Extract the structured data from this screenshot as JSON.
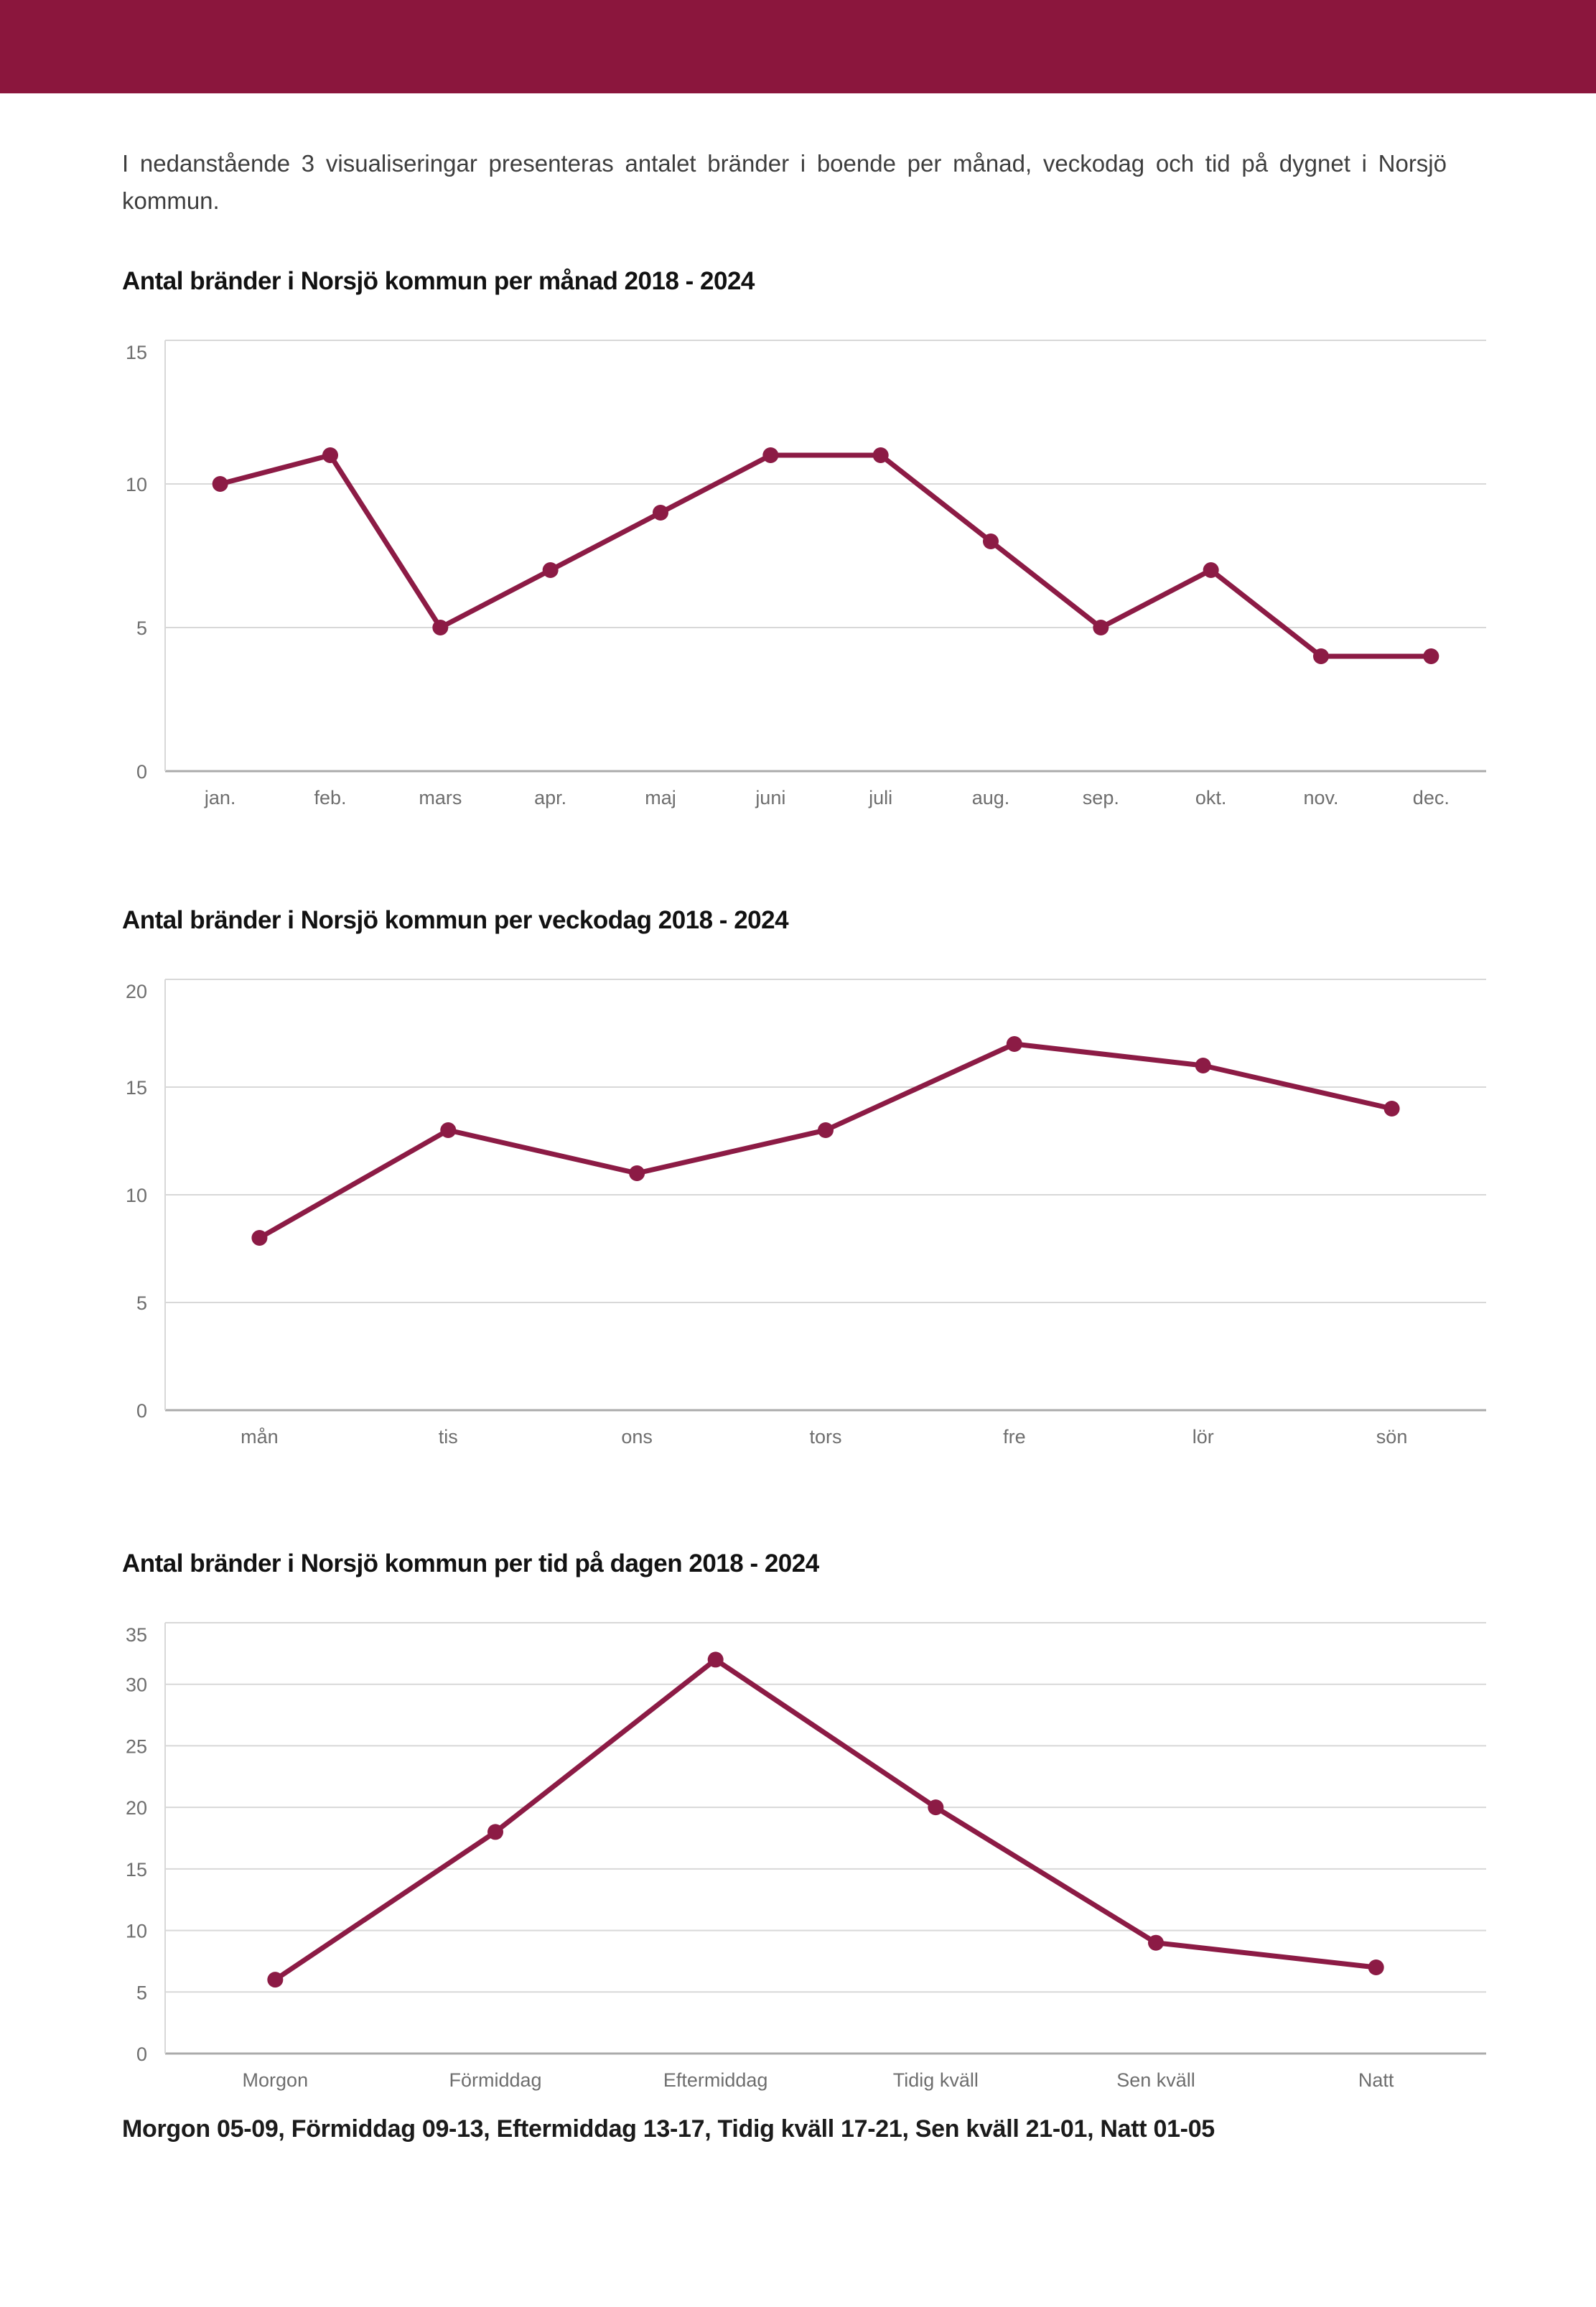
{
  "page": {
    "intro": "I nedanstående 3 visualiseringar presenteras antalet bränder i boende per månad, veckodag och tid på dygnet i Norsjö kommun.",
    "footnote": "Morgon 05-09, Förmiddag 09-13, Eftermiddag 13-17, Tidig kväll 17-21, Sen kväll 21-01, Natt 01-05"
  },
  "colors": {
    "header_bar": "#8B163D",
    "line": "#8C1B45",
    "marker": "#8C1B45",
    "gridline": "#D8D8D8",
    "zero_axis": "#ABABAB",
    "tick_text": "#6E6E6E",
    "body_text": "#3E3E3E",
    "title_text": "#121212"
  },
  "chart_data": [
    {
      "type": "line",
      "title": "Antal bränder i Norsjö kommun per månad 2018 - 2024",
      "categories": [
        "jan.",
        "feb.",
        "mars",
        "apr.",
        "maj",
        "juni",
        "juli",
        "aug.",
        "sep.",
        "okt.",
        "nov.",
        "dec."
      ],
      "values": [
        10,
        11,
        5,
        7,
        9,
        11,
        11,
        8,
        5,
        7,
        4,
        4
      ],
      "xlabel": "",
      "ylabel": "",
      "ylim": [
        0,
        15
      ],
      "yticks": [
        0,
        5,
        10,
        15
      ],
      "grid": true,
      "legend": "none",
      "marker": "circle"
    },
    {
      "type": "line",
      "title": "Antal bränder i Norsjö kommun per veckodag 2018 - 2024",
      "categories": [
        "mån",
        "tis",
        "ons",
        "tors",
        "fre",
        "lör",
        "sön"
      ],
      "values": [
        8,
        13,
        11,
        13,
        17,
        16,
        14
      ],
      "xlabel": "",
      "ylabel": "",
      "ylim": [
        0,
        20
      ],
      "yticks": [
        0,
        5,
        10,
        15,
        20
      ],
      "grid": true,
      "legend": "none",
      "marker": "circle"
    },
    {
      "type": "line",
      "title": "Antal bränder i Norsjö kommun per tid på dagen 2018 - 2024",
      "categories": [
        "Morgon",
        "Förmiddag",
        "Eftermiddag",
        "Tidig kväll",
        "Sen kväll",
        "Natt"
      ],
      "values": [
        6,
        18,
        32,
        20,
        9,
        7
      ],
      "xlabel": "",
      "ylabel": "",
      "ylim": [
        0,
        35
      ],
      "yticks": [
        0,
        5,
        10,
        15,
        20,
        25,
        30,
        35
      ],
      "grid": true,
      "legend": "none",
      "marker": "circle"
    }
  ]
}
